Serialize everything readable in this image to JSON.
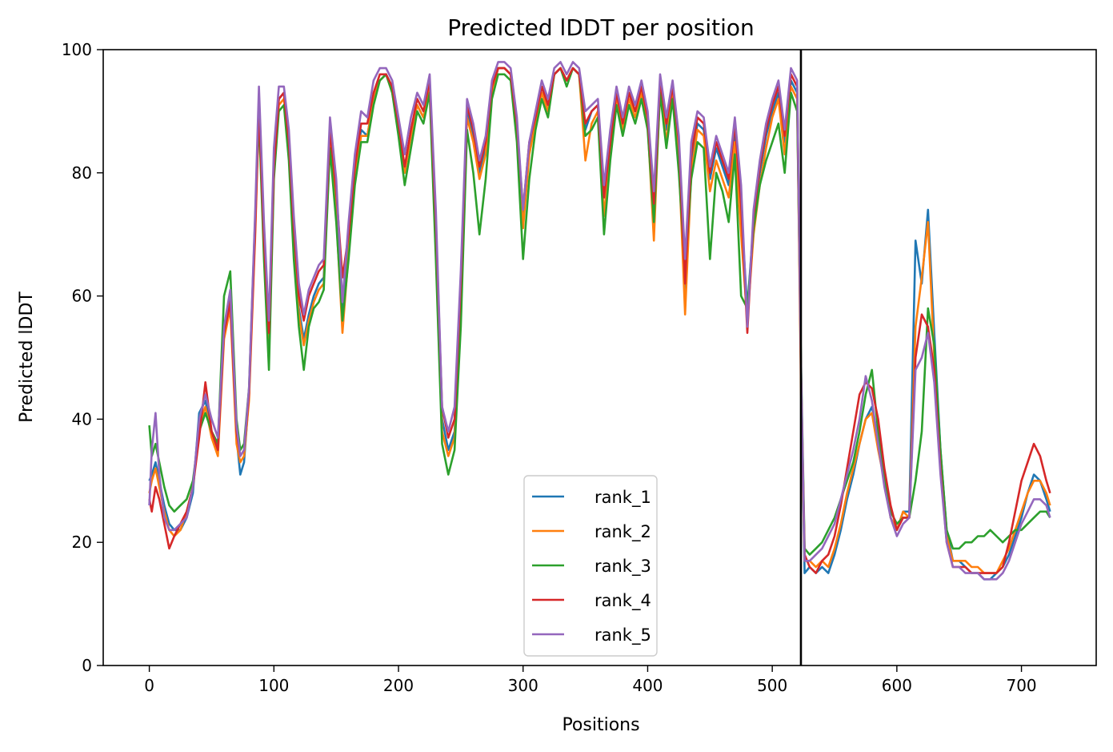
{
  "chart_data": {
    "type": "line",
    "title": "Predicted lDDT per position",
    "xlabel": "Positions",
    "ylabel": "Predicted lDDT",
    "xlim": [
      -37,
      760
    ],
    "ylim": [
      0,
      100
    ],
    "xticks": [
      0,
      100,
      200,
      300,
      400,
      500,
      600,
      700
    ],
    "yticks": [
      0,
      20,
      40,
      60,
      80,
      100
    ],
    "grid": false,
    "legend_position": "lower center",
    "chain_boundary_x": 523,
    "x": [
      0,
      2,
      5,
      8,
      12,
      16,
      20,
      25,
      30,
      35,
      40,
      45,
      50,
      55,
      60,
      65,
      70,
      73,
      76,
      80,
      85,
      88,
      92,
      96,
      100,
      104,
      108,
      112,
      116,
      120,
      124,
      128,
      132,
      136,
      140,
      145,
      150,
      155,
      160,
      165,
      170,
      175,
      180,
      185,
      190,
      195,
      200,
      205,
      210,
      215,
      220,
      225,
      230,
      235,
      240,
      245,
      250,
      255,
      260,
      265,
      270,
      275,
      280,
      285,
      290,
      295,
      300,
      305,
      310,
      315,
      320,
      325,
      330,
      335,
      340,
      345,
      350,
      355,
      360,
      365,
      370,
      375,
      380,
      385,
      390,
      395,
      400,
      405,
      410,
      415,
      420,
      425,
      430,
      435,
      440,
      445,
      450,
      455,
      460,
      465,
      470,
      475,
      480,
      485,
      490,
      495,
      500,
      505,
      510,
      515,
      520,
      523,
      526,
      530,
      535,
      540,
      545,
      550,
      555,
      560,
      565,
      570,
      575,
      580,
      585,
      590,
      595,
      600,
      605,
      610,
      615,
      620,
      625,
      630,
      635,
      640,
      645,
      650,
      655,
      660,
      665,
      670,
      675,
      680,
      685,
      690,
      695,
      700,
      705,
      710,
      715,
      720,
      723
    ],
    "series": [
      {
        "name": "rank_1",
        "color": "#1f77b4",
        "values": [
          30,
          31,
          33,
          30,
          26,
          23,
          22,
          22,
          24,
          28,
          41,
          43,
          38,
          36,
          55,
          60,
          37,
          31,
          33,
          44,
          72,
          92,
          70,
          52,
          82,
          92,
          93,
          85,
          70,
          58,
          53,
          57,
          60,
          62,
          63,
          86,
          75,
          57,
          68,
          80,
          87,
          86,
          92,
          95,
          96,
          94,
          88,
          80,
          87,
          91,
          89,
          94,
          70,
          40,
          35,
          38,
          60,
          90,
          86,
          80,
          84,
          93,
          97,
          97,
          96,
          88,
          72,
          84,
          89,
          94,
          91,
          96,
          97,
          95,
          97,
          96,
          87,
          90,
          91,
          76,
          85,
          93,
          88,
          93,
          90,
          94,
          89,
          74,
          95,
          87,
          94,
          84,
          60,
          82,
          88,
          87,
          79,
          84,
          81,
          78,
          87,
          74,
          58,
          72,
          80,
          86,
          90,
          93,
          85,
          95,
          93,
          47,
          15,
          16,
          15,
          16,
          15,
          18,
          22,
          27,
          31,
          36,
          40,
          42,
          37,
          31,
          24,
          22,
          25,
          25,
          69,
          62,
          74,
          54,
          35,
          22,
          17,
          17,
          16,
          15,
          15,
          14,
          14,
          15,
          16,
          18,
          21,
          24,
          28,
          31,
          30,
          27,
          25
        ]
      },
      {
        "name": "rank_2",
        "color": "#ff7f0e",
        "values": [
          28,
          30,
          32,
          29,
          25,
          22,
          21,
          22,
          25,
          29,
          39,
          42,
          37,
          34,
          53,
          58,
          36,
          33,
          34,
          43,
          70,
          90,
          68,
          50,
          80,
          91,
          92,
          84,
          68,
          57,
          52,
          56,
          59,
          61,
          62,
          85,
          73,
          54,
          67,
          79,
          86,
          86,
          92,
          95,
          96,
          93,
          87,
          80,
          86,
          91,
          89,
          94,
          69,
          38,
          34,
          37,
          58,
          89,
          85,
          79,
          83,
          93,
          97,
          97,
          96,
          87,
          71,
          83,
          88,
          93,
          90,
          96,
          97,
          95,
          97,
          96,
          82,
          88,
          90,
          73,
          84,
          92,
          87,
          92,
          89,
          93,
          88,
          69,
          94,
          85,
          93,
          82,
          57,
          80,
          87,
          86,
          77,
          82,
          79,
          76,
          85,
          70,
          56,
          70,
          78,
          84,
          89,
          92,
          83,
          94,
          92,
          45,
          17,
          17,
          16,
          17,
          16,
          19,
          23,
          28,
          32,
          36,
          40,
          41,
          35,
          30,
          24,
          22,
          25,
          24,
          55,
          63,
          72,
          50,
          33,
          21,
          17,
          17,
          17,
          16,
          16,
          15,
          15,
          15,
          17,
          19,
          22,
          25,
          28,
          30,
          30,
          28,
          26
        ]
      },
      {
        "name": "rank_3",
        "color": "#2ca02c",
        "values": [
          39,
          34,
          36,
          33,
          29,
          26,
          25,
          26,
          27,
          30,
          38,
          41,
          38,
          36,
          60,
          64,
          40,
          35,
          36,
          45,
          73,
          89,
          66,
          48,
          79,
          90,
          91,
          82,
          66,
          55,
          48,
          55,
          58,
          59,
          61,
          84,
          72,
          56,
          66,
          78,
          85,
          85,
          91,
          95,
          96,
          93,
          86,
          78,
          84,
          90,
          88,
          93,
          66,
          36,
          31,
          35,
          55,
          87,
          80,
          70,
          79,
          92,
          96,
          96,
          95,
          85,
          66,
          79,
          87,
          92,
          89,
          96,
          97,
          94,
          97,
          96,
          86,
          87,
          89,
          70,
          82,
          91,
          86,
          91,
          88,
          92,
          87,
          72,
          93,
          84,
          92,
          80,
          64,
          79,
          85,
          84,
          66,
          80,
          77,
          72,
          83,
          60,
          58,
          71,
          78,
          82,
          85,
          88,
          80,
          93,
          90,
          50,
          19,
          18,
          19,
          20,
          22,
          24,
          27,
          30,
          33,
          38,
          44,
          48,
          38,
          30,
          25,
          23,
          24,
          24,
          30,
          38,
          58,
          52,
          35,
          22,
          19,
          19,
          20,
          20,
          21,
          21,
          22,
          21,
          20,
          21,
          22,
          22,
          23,
          24,
          25,
          25,
          24
        ]
      },
      {
        "name": "rank_4",
        "color": "#d62728",
        "values": [
          27,
          25,
          29,
          27,
          23,
          19,
          21,
          23,
          25,
          29,
          37,
          46,
          38,
          35,
          54,
          59,
          38,
          34,
          35,
          44,
          71,
          91,
          69,
          54,
          81,
          92,
          93,
          85,
          71,
          60,
          56,
          60,
          62,
          64,
          65,
          87,
          77,
          63,
          70,
          81,
          88,
          88,
          93,
          96,
          96,
          94,
          88,
          81,
          87,
          92,
          90,
          95,
          72,
          42,
          37,
          40,
          62,
          91,
          87,
          81,
          85,
          94,
          97,
          97,
          96,
          88,
          74,
          85,
          89,
          94,
          91,
          96,
          97,
          95,
          97,
          96,
          88,
          90,
          91,
          76,
          85,
          93,
          88,
          93,
          90,
          94,
          89,
          75,
          95,
          88,
          94,
          85,
          62,
          83,
          89,
          88,
          80,
          85,
          82,
          79,
          88,
          75,
          54,
          73,
          81,
          87,
          91,
          94,
          86,
          96,
          94,
          48,
          18,
          16,
          15,
          17,
          18,
          21,
          26,
          32,
          38,
          44,
          46,
          45,
          40,
          32,
          26,
          22,
          24,
          24,
          50,
          57,
          55,
          48,
          32,
          20,
          16,
          16,
          16,
          15,
          15,
          15,
          15,
          15,
          16,
          20,
          25,
          30,
          33,
          36,
          34,
          30,
          28
        ]
      },
      {
        "name": "rank_5",
        "color": "#9467bd",
        "values": [
          26,
          35,
          41,
          31,
          24,
          22,
          22,
          23,
          24,
          29,
          40,
          44,
          40,
          37,
          55,
          61,
          39,
          34,
          35,
          45,
          74,
          94,
          72,
          56,
          84,
          94,
          94,
          87,
          73,
          62,
          57,
          61,
          63,
          65,
          66,
          89,
          79,
          59,
          72,
          83,
          90,
          89,
          95,
          97,
          97,
          95,
          89,
          83,
          89,
          93,
          91,
          96,
          74,
          42,
          38,
          42,
          64,
          92,
          88,
          82,
          86,
          95,
          98,
          98,
          97,
          89,
          74,
          85,
          90,
          95,
          92,
          97,
          98,
          96,
          98,
          97,
          90,
          91,
          92,
          78,
          87,
          94,
          89,
          94,
          91,
          95,
          90,
          77,
          96,
          89,
          95,
          86,
          66,
          85,
          90,
          89,
          81,
          86,
          83,
          80,
          89,
          78,
          55,
          74,
          82,
          88,
          92,
          95,
          87,
          97,
          95,
          49,
          17,
          17,
          18,
          19,
          21,
          23,
          27,
          31,
          35,
          40,
          47,
          43,
          36,
          29,
          24,
          21,
          23,
          24,
          48,
          50,
          54,
          46,
          31,
          20,
          16,
          16,
          15,
          15,
          15,
          14,
          14,
          14,
          15,
          17,
          20,
          23,
          25,
          27,
          27,
          26,
          24
        ]
      }
    ]
  }
}
